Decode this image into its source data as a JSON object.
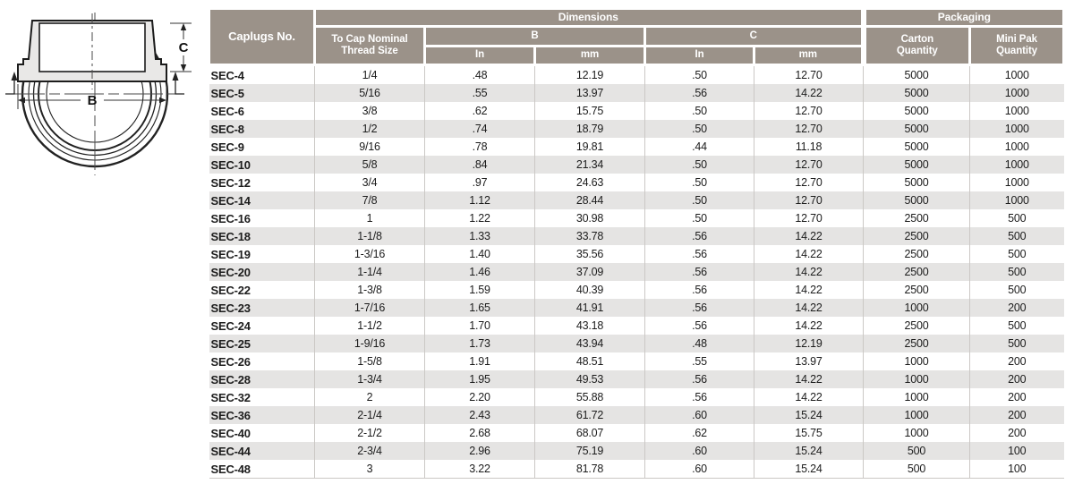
{
  "diagram": {
    "side_view": {
      "dim_width_label": "B",
      "dim_height_label": "C"
    }
  },
  "table": {
    "header": {
      "caplugs_no": "Caplugs No.",
      "dimensions_group": "Dimensions",
      "packaging_group": "Packaging",
      "thread_size": "To Cap Nominal\nThread Size",
      "b_label": "B",
      "c_label": "C",
      "b_in_label": "In",
      "b_mm_label": "mm",
      "c_in_label": "In",
      "c_mm_label": "mm",
      "carton_qty": "Carton\nQuantity",
      "mini_pak_qty": "Mini Pak\nQuantity"
    },
    "columns": [
      "caplugs_no",
      "thread_size",
      "b_in",
      "b_mm",
      "c_in",
      "c_mm",
      "carton_qty",
      "mini_pak_qty"
    ],
    "rows": [
      {
        "caplugs_no": "SEC-4",
        "thread_size": "1/4",
        "b_in": ".48",
        "b_mm": "12.19",
        "c_in": ".50",
        "c_mm": "12.70",
        "carton_qty": "5000",
        "mini_pak_qty": "1000"
      },
      {
        "caplugs_no": "SEC-5",
        "thread_size": "5/16",
        "b_in": ".55",
        "b_mm": "13.97",
        "c_in": ".56",
        "c_mm": "14.22",
        "carton_qty": "5000",
        "mini_pak_qty": "1000"
      },
      {
        "caplugs_no": "SEC-6",
        "thread_size": "3/8",
        "b_in": ".62",
        "b_mm": "15.75",
        "c_in": ".50",
        "c_mm": "12.70",
        "carton_qty": "5000",
        "mini_pak_qty": "1000"
      },
      {
        "caplugs_no": "SEC-8",
        "thread_size": "1/2",
        "b_in": ".74",
        "b_mm": "18.79",
        "c_in": ".50",
        "c_mm": "12.70",
        "carton_qty": "5000",
        "mini_pak_qty": "1000"
      },
      {
        "caplugs_no": "SEC-9",
        "thread_size": "9/16",
        "b_in": ".78",
        "b_mm": "19.81",
        "c_in": ".44",
        "c_mm": "11.18",
        "carton_qty": "5000",
        "mini_pak_qty": "1000"
      },
      {
        "caplugs_no": "SEC-10",
        "thread_size": "5/8",
        "b_in": ".84",
        "b_mm": "21.34",
        "c_in": ".50",
        "c_mm": "12.70",
        "carton_qty": "5000",
        "mini_pak_qty": "1000"
      },
      {
        "caplugs_no": "SEC-12",
        "thread_size": "3/4",
        "b_in": ".97",
        "b_mm": "24.63",
        "c_in": ".50",
        "c_mm": "12.70",
        "carton_qty": "5000",
        "mini_pak_qty": "1000"
      },
      {
        "caplugs_no": "SEC-14",
        "thread_size": "7/8",
        "b_in": "1.12",
        "b_mm": "28.44",
        "c_in": ".50",
        "c_mm": "12.70",
        "carton_qty": "5000",
        "mini_pak_qty": "1000"
      },
      {
        "caplugs_no": "SEC-16",
        "thread_size": "1",
        "b_in": "1.22",
        "b_mm": "30.98",
        "c_in": ".50",
        "c_mm": "12.70",
        "carton_qty": "2500",
        "mini_pak_qty": "500"
      },
      {
        "caplugs_no": "SEC-18",
        "thread_size": "1-1/8",
        "b_in": "1.33",
        "b_mm": "33.78",
        "c_in": ".56",
        "c_mm": "14.22",
        "carton_qty": "2500",
        "mini_pak_qty": "500"
      },
      {
        "caplugs_no": "SEC-19",
        "thread_size": "1-3/16",
        "b_in": "1.40",
        "b_mm": "35.56",
        "c_in": ".56",
        "c_mm": "14.22",
        "carton_qty": "2500",
        "mini_pak_qty": "500"
      },
      {
        "caplugs_no": "SEC-20",
        "thread_size": "1-1/4",
        "b_in": "1.46",
        "b_mm": "37.09",
        "c_in": ".56",
        "c_mm": "14.22",
        "carton_qty": "2500",
        "mini_pak_qty": "500"
      },
      {
        "caplugs_no": "SEC-22",
        "thread_size": "1-3/8",
        "b_in": "1.59",
        "b_mm": "40.39",
        "c_in": ".56",
        "c_mm": "14.22",
        "carton_qty": "2500",
        "mini_pak_qty": "500"
      },
      {
        "caplugs_no": "SEC-23",
        "thread_size": "1-7/16",
        "b_in": "1.65",
        "b_mm": "41.91",
        "c_in": ".56",
        "c_mm": "14.22",
        "carton_qty": "1000",
        "mini_pak_qty": "200"
      },
      {
        "caplugs_no": "SEC-24",
        "thread_size": "1-1/2",
        "b_in": "1.70",
        "b_mm": "43.18",
        "c_in": ".56",
        "c_mm": "14.22",
        "carton_qty": "2500",
        "mini_pak_qty": "500"
      },
      {
        "caplugs_no": "SEC-25",
        "thread_size": "1-9/16",
        "b_in": "1.73",
        "b_mm": "43.94",
        "c_in": ".48",
        "c_mm": "12.19",
        "carton_qty": "2500",
        "mini_pak_qty": "500"
      },
      {
        "caplugs_no": "SEC-26",
        "thread_size": "1-5/8",
        "b_in": "1.91",
        "b_mm": "48.51",
        "c_in": ".55",
        "c_mm": "13.97",
        "carton_qty": "1000",
        "mini_pak_qty": "200"
      },
      {
        "caplugs_no": "SEC-28",
        "thread_size": "1-3/4",
        "b_in": "1.95",
        "b_mm": "49.53",
        "c_in": ".56",
        "c_mm": "14.22",
        "carton_qty": "1000",
        "mini_pak_qty": "200"
      },
      {
        "caplugs_no": "SEC-32",
        "thread_size": "2",
        "b_in": "2.20",
        "b_mm": "55.88",
        "c_in": ".56",
        "c_mm": "14.22",
        "carton_qty": "1000",
        "mini_pak_qty": "200"
      },
      {
        "caplugs_no": "SEC-36",
        "thread_size": "2-1/4",
        "b_in": "2.43",
        "b_mm": "61.72",
        "c_in": ".60",
        "c_mm": "15.24",
        "carton_qty": "1000",
        "mini_pak_qty": "200"
      },
      {
        "caplugs_no": "SEC-40",
        "thread_size": "2-1/2",
        "b_in": "2.68",
        "b_mm": "68.07",
        "c_in": ".62",
        "c_mm": "15.75",
        "carton_qty": "1000",
        "mini_pak_qty": "200"
      },
      {
        "caplugs_no": "SEC-44",
        "thread_size": "2-3/4",
        "b_in": "2.96",
        "b_mm": "75.19",
        "c_in": ".60",
        "c_mm": "15.24",
        "carton_qty": "500",
        "mini_pak_qty": "100"
      },
      {
        "caplugs_no": "SEC-48",
        "thread_size": "3",
        "b_in": "3.22",
        "b_mm": "81.78",
        "c_in": ".60",
        "c_mm": "15.24",
        "carton_qty": "500",
        "mini_pak_qty": "100"
      }
    ]
  },
  "colors": {
    "header_bg": "#9b9289",
    "header_text": "#ffffff",
    "row_alt_bg": "#e5e4e3",
    "grid_line": "#cbc8c5",
    "body_text": "#1c1c1c"
  }
}
